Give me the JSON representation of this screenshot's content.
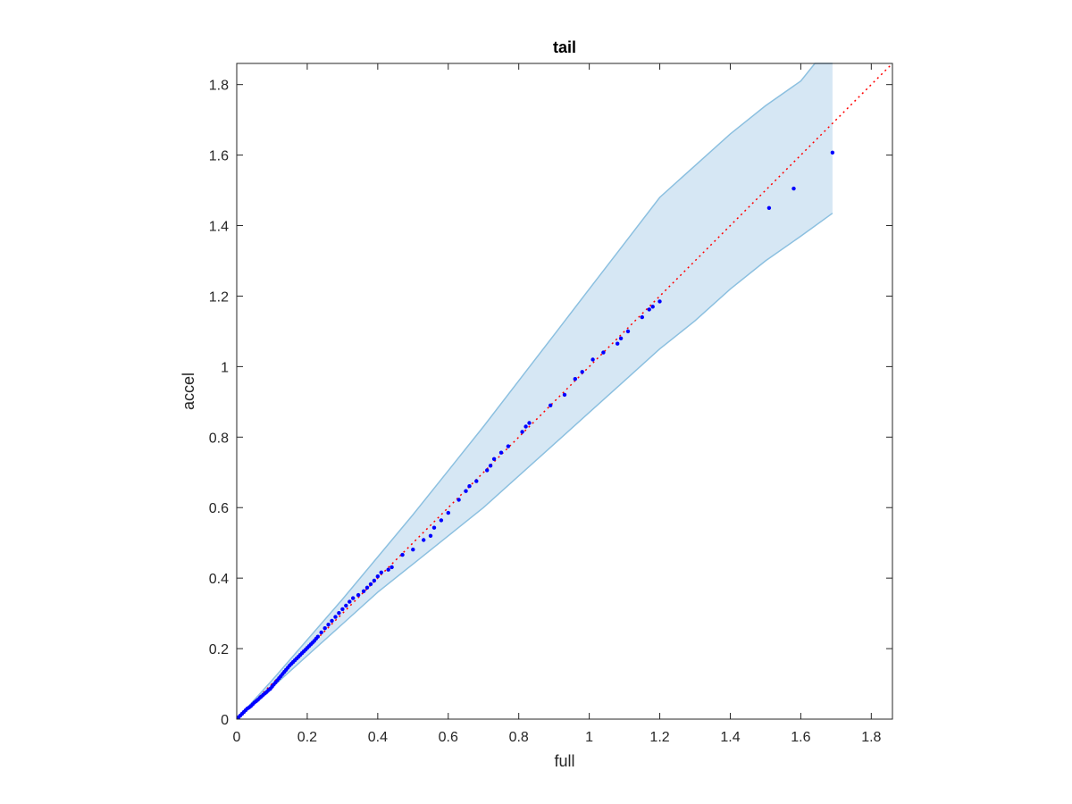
{
  "chart_data": {
    "type": "scatter",
    "title": "tail",
    "xlabel": "full",
    "ylabel": "accel",
    "xlim": [
      0,
      1.86
    ],
    "ylim": [
      0,
      1.86
    ],
    "xticks": [
      0,
      0.2,
      0.4,
      0.6,
      0.8,
      1,
      1.2,
      1.4,
      1.6,
      1.8
    ],
    "yticks": [
      0,
      0.2,
      0.4,
      0.6,
      0.8,
      1,
      1.2,
      1.4,
      1.6,
      1.8
    ],
    "xtick_labels": [
      "0",
      "0.2",
      "0.4",
      "0.6",
      "0.8",
      "1",
      "1.2",
      "1.4",
      "1.6",
      "1.8"
    ],
    "ytick_labels": [
      "0",
      "0.2",
      "0.4",
      "0.6",
      "0.8",
      "1",
      "1.2",
      "1.4",
      "1.6",
      "1.8"
    ],
    "grid": false,
    "reference_line": {
      "from": [
        0,
        0
      ],
      "to": [
        1.86,
        1.86
      ],
      "style": "dotted",
      "color": "#ff0000"
    },
    "band": {
      "color": "#d6e7f4",
      "edge_color": "#8cc0e0",
      "upper": [
        [
          0,
          0
        ],
        [
          0.1,
          0.11
        ],
        [
          0.2,
          0.225
        ],
        [
          0.3,
          0.34
        ],
        [
          0.4,
          0.46
        ],
        [
          0.5,
          0.58
        ],
        [
          0.6,
          0.705
        ],
        [
          0.7,
          0.83
        ],
        [
          0.8,
          0.96
        ],
        [
          0.9,
          1.09
        ],
        [
          1.0,
          1.22
        ],
        [
          1.1,
          1.35
        ],
        [
          1.2,
          1.48
        ],
        [
          1.3,
          1.57
        ],
        [
          1.4,
          1.66
        ],
        [
          1.5,
          1.74
        ],
        [
          1.6,
          1.81
        ],
        [
          1.64,
          1.86
        ],
        [
          1.69,
          1.86
        ]
      ],
      "lower": [
        [
          0,
          0
        ],
        [
          0.1,
          0.09
        ],
        [
          0.2,
          0.18
        ],
        [
          0.3,
          0.27
        ],
        [
          0.4,
          0.36
        ],
        [
          0.5,
          0.44
        ],
        [
          0.6,
          0.52
        ],
        [
          0.7,
          0.6
        ],
        [
          0.8,
          0.69
        ],
        [
          0.9,
          0.78
        ],
        [
          1.0,
          0.87
        ],
        [
          1.1,
          0.96
        ],
        [
          1.2,
          1.05
        ],
        [
          1.3,
          1.13
        ],
        [
          1.4,
          1.22
        ],
        [
          1.5,
          1.3
        ],
        [
          1.6,
          1.37
        ],
        [
          1.69,
          1.435
        ]
      ]
    },
    "series": [
      {
        "color": "#0000ff",
        "x": [
          0.005,
          0.01,
          0.015,
          0.02,
          0.025,
          0.03,
          0.035,
          0.04,
          0.045,
          0.05,
          0.055,
          0.06,
          0.065,
          0.07,
          0.075,
          0.08,
          0.085,
          0.09,
          0.095,
          0.1,
          0.105,
          0.11,
          0.115,
          0.12,
          0.125,
          0.13,
          0.135,
          0.14,
          0.145,
          0.15,
          0.155,
          0.16,
          0.165,
          0.17,
          0.175,
          0.18,
          0.185,
          0.19,
          0.195,
          0.2,
          0.205,
          0.21,
          0.215,
          0.22,
          0.225,
          0.23,
          0.24,
          0.25,
          0.26,
          0.27,
          0.28,
          0.29,
          0.3,
          0.31,
          0.32,
          0.33,
          0.345,
          0.36,
          0.37,
          0.38,
          0.39,
          0.4,
          0.41,
          0.43,
          0.44,
          0.47,
          0.5,
          0.53,
          0.55,
          0.56,
          0.58,
          0.6,
          0.63,
          0.65,
          0.66,
          0.68,
          0.71,
          0.72,
          0.73,
          0.75,
          0.77,
          0.81,
          0.82,
          0.83,
          0.89,
          0.93,
          0.96,
          0.98,
          1.01,
          1.04,
          1.08,
          1.09,
          1.11,
          1.15,
          1.17,
          1.18,
          1.2,
          1.51,
          1.58,
          1.69
        ],
        "y": [
          0.005,
          0.01,
          0.015,
          0.02,
          0.025,
          0.03,
          0.033,
          0.037,
          0.042,
          0.047,
          0.051,
          0.055,
          0.06,
          0.064,
          0.069,
          0.073,
          0.077,
          0.082,
          0.086,
          0.092,
          0.098,
          0.104,
          0.11,
          0.116,
          0.122,
          0.128,
          0.134,
          0.14,
          0.146,
          0.152,
          0.157,
          0.162,
          0.167,
          0.172,
          0.177,
          0.182,
          0.187,
          0.192,
          0.197,
          0.202,
          0.207,
          0.212,
          0.217,
          0.222,
          0.228,
          0.234,
          0.246,
          0.258,
          0.268,
          0.279,
          0.29,
          0.301,
          0.312,
          0.322,
          0.333,
          0.343,
          0.352,
          0.363,
          0.373,
          0.383,
          0.393,
          0.405,
          0.416,
          0.424,
          0.431,
          0.466,
          0.481,
          0.508,
          0.52,
          0.543,
          0.564,
          0.585,
          0.622,
          0.647,
          0.661,
          0.675,
          0.706,
          0.719,
          0.738,
          0.756,
          0.774,
          0.815,
          0.83,
          0.84,
          0.89,
          0.92,
          0.965,
          0.985,
          1.02,
          1.04,
          1.065,
          1.08,
          1.1,
          1.14,
          1.162,
          1.17,
          1.185,
          1.45,
          1.505,
          1.607
        ]
      }
    ]
  }
}
